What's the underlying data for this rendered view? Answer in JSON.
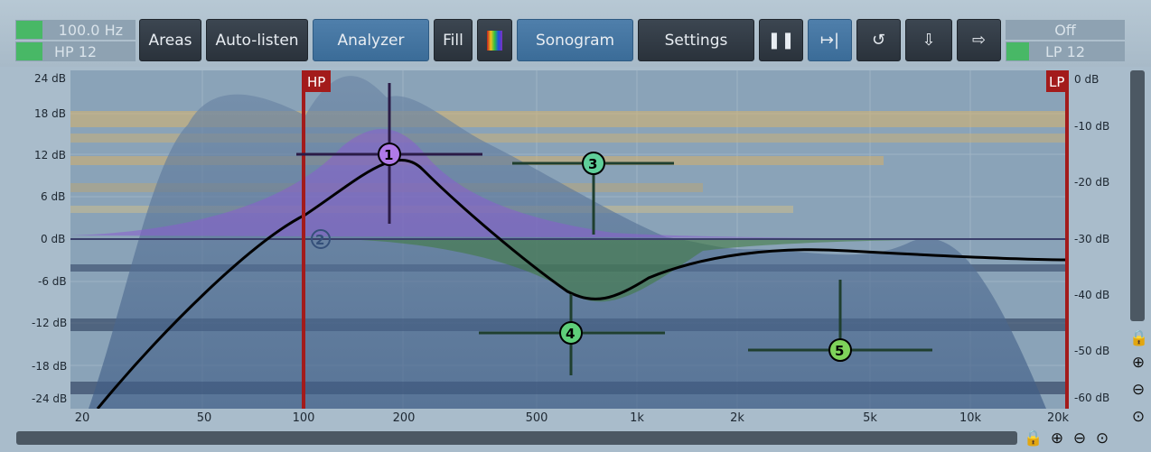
{
  "left_panel": {
    "hp_freq": "100.0 Hz",
    "hp_type": "HP 12"
  },
  "right_panel": {
    "lp_freq": "Off",
    "lp_type": "LP 12"
  },
  "toolbar": {
    "areas": "Areas",
    "auto_listen": "Auto-listen",
    "analyzer": "Analyzer",
    "fill": "Fill",
    "sonogram": "Sonogram",
    "settings": "Settings"
  },
  "icons": {
    "pause": "pause-icon",
    "follow": "follow-icon",
    "undo": "undo-icon",
    "import": "import-icon",
    "export": "export-icon"
  },
  "y_axis_left": [
    "24 dB",
    "18 dB",
    "12 dB",
    "6 dB",
    "0 dB",
    "-6 dB",
    "-12 dB",
    "-18 dB",
    "-24 dB"
  ],
  "y_axis_right": [
    "0 dB",
    "-10 dB",
    "-20 dB",
    "-30 dB",
    "-40 dB",
    "-50 dB",
    "-60 dB"
  ],
  "x_axis": [
    "20",
    "50",
    "100",
    "200",
    "500",
    "1k",
    "2k",
    "5k",
    "10k",
    "20k"
  ],
  "filters": {
    "hp_label": "HP",
    "lp_label": "LP"
  },
  "bands": [
    "1",
    "2",
    "3",
    "4",
    "5"
  ],
  "colors": {
    "accent_active": "#4a7aa6",
    "band_purple": "#a06ae0",
    "band_green": "#5fcf7a",
    "filter_red": "#a31b1b",
    "eq_curve": "#000000"
  }
}
